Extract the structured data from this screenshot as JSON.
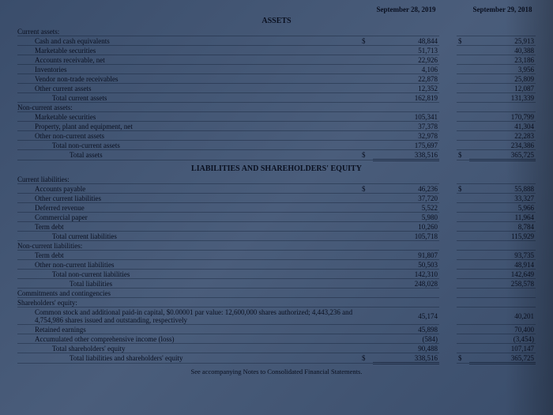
{
  "headers": {
    "col1": "September 28, 2019",
    "col2": "September 29, 2018"
  },
  "sections": {
    "assets_title": "ASSETS",
    "liab_title": "LIABILITIES AND SHAREHOLDERS' EQUITY",
    "footnote": "See accompanying Notes to Consolidated Financial Statements."
  },
  "rows": [
    {
      "label": "Current assets:",
      "ind": 0,
      "v1": "",
      "v2": "",
      "s1": "",
      "s2": ""
    },
    {
      "label": "Cash and cash equivalents",
      "ind": 1,
      "v1": "48,844",
      "v2": "25,913",
      "s1": "$",
      "s2": "$"
    },
    {
      "label": "Marketable securities",
      "ind": 1,
      "v1": "51,713",
      "v2": "40,388"
    },
    {
      "label": "Accounts receivable, net",
      "ind": 1,
      "v1": "22,926",
      "v2": "23,186"
    },
    {
      "label": "Inventories",
      "ind": 1,
      "v1": "4,106",
      "v2": "3,956"
    },
    {
      "label": "Vendor non-trade receivables",
      "ind": 1,
      "v1": "22,878",
      "v2": "25,809"
    },
    {
      "label": "Other current assets",
      "ind": 1,
      "v1": "12,352",
      "v2": "12,087"
    },
    {
      "label": "Total current assets",
      "ind": 2,
      "v1": "162,819",
      "v2": "131,339"
    },
    {
      "label": "Non-current assets:",
      "ind": 0,
      "v1": "",
      "v2": ""
    },
    {
      "label": "Marketable securities",
      "ind": 1,
      "v1": "105,341",
      "v2": "170,799"
    },
    {
      "label": "Property, plant and equipment, net",
      "ind": 1,
      "v1": "37,378",
      "v2": "41,304"
    },
    {
      "label": "Other non-current assets",
      "ind": 1,
      "v1": "32,978",
      "v2": "22,283"
    },
    {
      "label": "Total non-current assets",
      "ind": 2,
      "v1": "175,697",
      "v2": "234,386"
    },
    {
      "label": "Total assets",
      "ind": 3,
      "v1": "338,516",
      "v2": "365,725",
      "s1": "$",
      "s2": "$",
      "dbl": true
    }
  ],
  "liab_rows": [
    {
      "label": "Current liabilities:",
      "ind": 0,
      "v1": "",
      "v2": ""
    },
    {
      "label": "Accounts payable",
      "ind": 1,
      "v1": "46,236",
      "v2": "55,888",
      "s1": "$",
      "s2": "$"
    },
    {
      "label": "Other current liabilities",
      "ind": 1,
      "v1": "37,720",
      "v2": "33,327"
    },
    {
      "label": "Deferred revenue",
      "ind": 1,
      "v1": "5,522",
      "v2": "5,966"
    },
    {
      "label": "Commercial paper",
      "ind": 1,
      "v1": "5,980",
      "v2": "11,964"
    },
    {
      "label": "Term debt",
      "ind": 1,
      "v1": "10,260",
      "v2": "8,784"
    },
    {
      "label": "Total current liabilities",
      "ind": 2,
      "v1": "105,718",
      "v2": "115,929"
    },
    {
      "label": "Non-current liabilities:",
      "ind": 0,
      "v1": "",
      "v2": ""
    },
    {
      "label": "Term debt",
      "ind": 1,
      "v1": "91,807",
      "v2": "93,735"
    },
    {
      "label": "Other non-current liabilities",
      "ind": 1,
      "v1": "50,503",
      "v2": "48,914"
    },
    {
      "label": "Total non-current liabilities",
      "ind": 2,
      "v1": "142,310",
      "v2": "142,649"
    },
    {
      "label": "Total liabilities",
      "ind": 3,
      "v1": "248,028",
      "v2": "258,578"
    },
    {
      "label": "Commitments and contingencies",
      "ind": 0,
      "v1": "",
      "v2": ""
    },
    {
      "label": "Shareholders' equity:",
      "ind": 0,
      "v1": "",
      "v2": ""
    },
    {
      "label": "Common stock and additional paid-in capital, $0.00001 par value: 12,600,000 shares authorized; 4,443,236 and 4,754,986 shares issued and outstanding, respectively",
      "ind": 1,
      "v1": "45,174",
      "v2": "40,201",
      "wrap": true
    },
    {
      "label": "Retained earnings",
      "ind": 1,
      "v1": "45,898",
      "v2": "70,400"
    },
    {
      "label": "Accumulated other comprehensive income (loss)",
      "ind": 1,
      "v1": "(584)",
      "v2": "(3,454)"
    },
    {
      "label": "Total shareholders' equity",
      "ind": 2,
      "v1": "90,488",
      "v2": "107,147"
    },
    {
      "label": "Total liabilities and shareholders' equity",
      "ind": 3,
      "v1": "338,516",
      "v2": "365,725",
      "s1": "$",
      "s2": "$",
      "dbl": true
    }
  ]
}
